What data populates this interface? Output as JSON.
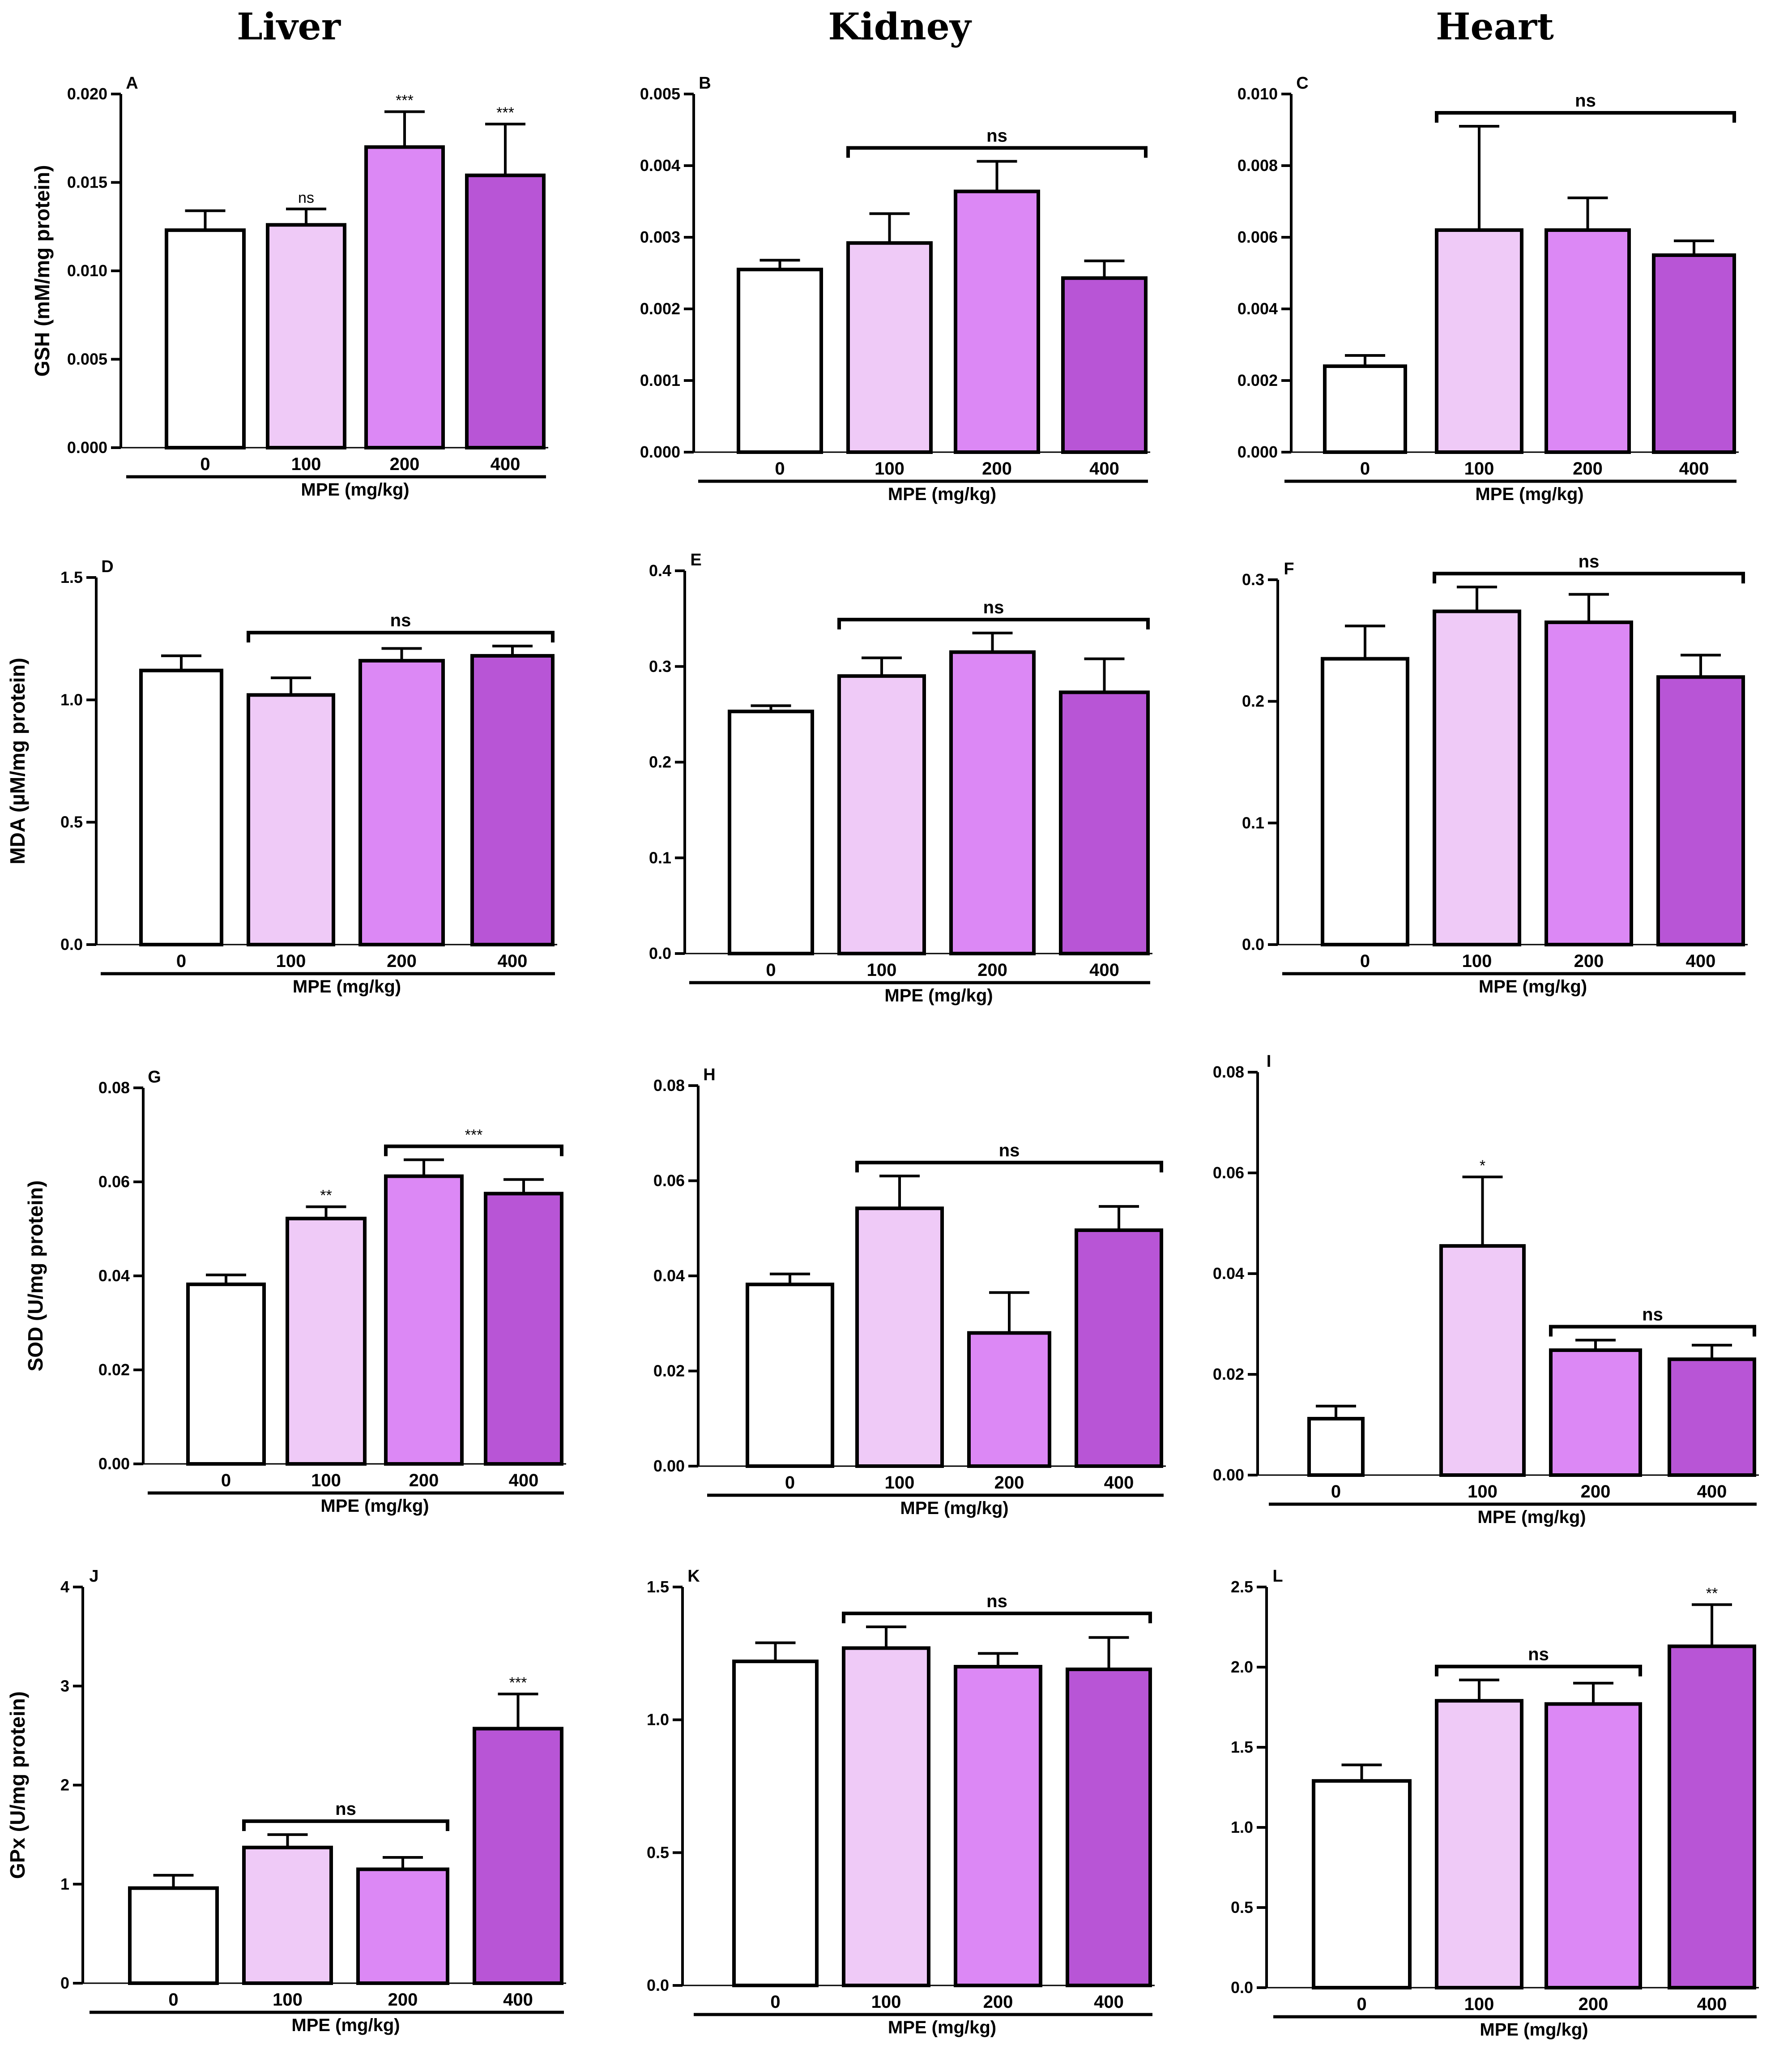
{
  "columns": [
    "Liver",
    "Kidney",
    "Heart"
  ],
  "colors": {
    "c0": "#ffffff",
    "c100": "#efcaf7",
    "c200": "#dc88f5",
    "c400": "#b855d6",
    "stroke": "#000000"
  },
  "chart_data": [
    {
      "panel": "A",
      "type": "bar",
      "organ": "Liver",
      "ylabel": "GSH (mM/mg protein)",
      "xlabel": "MPE (mg/kg)",
      "categories": [
        "0",
        "100",
        "200",
        "400"
      ],
      "values": [
        0.0123,
        0.0126,
        0.017,
        0.0154
      ],
      "errors": [
        0.0011,
        0.0009,
        0.002,
        0.0029
      ],
      "ylim": [
        0,
        0.02
      ],
      "ticks": [
        0,
        0.005,
        0.01,
        0.015,
        0.02
      ],
      "tick_labels": [
        "0.000",
        "0.005",
        "0.010",
        "0.015",
        "0.020"
      ],
      "annotations": [
        {
          "text": "ns",
          "bar": 1
        },
        {
          "text": "***",
          "bar": 2
        },
        {
          "text": "***",
          "bar": 3
        }
      ]
    },
    {
      "panel": "B",
      "type": "bar",
      "organ": "Kidney",
      "ylabel": "",
      "xlabel": "MPE (mg/kg)",
      "categories": [
        "0",
        "100",
        "200",
        "400"
      ],
      "values": [
        0.00255,
        0.00292,
        0.00364,
        0.00243
      ],
      "errors": [
        0.00013,
        0.00041,
        0.00042,
        0.00024
      ],
      "ylim": [
        0,
        0.005
      ],
      "ticks": [
        0,
        0.001,
        0.002,
        0.003,
        0.004,
        0.005
      ],
      "tick_labels": [
        "0.000",
        "0.001",
        "0.002",
        "0.003",
        "0.004",
        "0.005"
      ],
      "annotations": [
        {
          "text": "ns",
          "bracket": [
            1,
            3
          ]
        }
      ]
    },
    {
      "panel": "C",
      "type": "bar",
      "organ": "Heart",
      "ylabel": "",
      "xlabel": "MPE (mg/kg)",
      "categories": [
        "0",
        "100",
        "200",
        "400"
      ],
      "values": [
        0.0024,
        0.0062,
        0.0062,
        0.0055
      ],
      "errors": [
        0.0003,
        0.0029,
        0.0009,
        0.0004
      ],
      "ylim": [
        0,
        0.01
      ],
      "ticks": [
        0,
        0.002,
        0.004,
        0.006,
        0.008,
        0.01
      ],
      "tick_labels": [
        "0.000",
        "0.002",
        "0.004",
        "0.006",
        "0.008",
        "0.010"
      ],
      "annotations": [
        {
          "text": "ns",
          "bracket": [
            1,
            3
          ]
        }
      ]
    },
    {
      "panel": "D",
      "type": "bar",
      "organ": "Liver",
      "ylabel": "MDA (µM/mg protein)",
      "xlabel": "MPE (mg/kg)",
      "categories": [
        "0",
        "100",
        "200",
        "400"
      ],
      "values": [
        1.12,
        1.02,
        1.16,
        1.18
      ],
      "errors": [
        0.06,
        0.07,
        0.05,
        0.04
      ],
      "ylim": [
        0,
        1.5
      ],
      "ticks": [
        0,
        0.5,
        1.0,
        1.5
      ],
      "tick_labels": [
        "0.0",
        "0.5",
        "1.0",
        "1.5"
      ],
      "annotations": [
        {
          "text": "ns",
          "bracket": [
            1,
            3
          ]
        }
      ]
    },
    {
      "panel": "E",
      "type": "bar",
      "organ": "Kidney",
      "ylabel": "",
      "xlabel": "MPE (mg/kg)",
      "categories": [
        "0",
        "100",
        "200",
        "400"
      ],
      "values": [
        0.253,
        0.29,
        0.315,
        0.273
      ],
      "errors": [
        0.006,
        0.019,
        0.02,
        0.035
      ],
      "ylim": [
        0,
        0.4
      ],
      "ticks": [
        0,
        0.1,
        0.2,
        0.3,
        0.4
      ],
      "tick_labels": [
        "0.0",
        "0.1",
        "0.2",
        "0.3",
        "0.4"
      ],
      "annotations": [
        {
          "text": "ns",
          "bracket": [
            1,
            3
          ]
        }
      ]
    },
    {
      "panel": "F",
      "type": "bar",
      "organ": "Heart",
      "ylabel": "",
      "xlabel": "MPE (mg/kg)",
      "categories": [
        "0",
        "100",
        "200",
        "400"
      ],
      "values": [
        0.235,
        0.274,
        0.265,
        0.22
      ],
      "errors": [
        0.027,
        0.02,
        0.023,
        0.018
      ],
      "ylim": [
        0,
        0.3
      ],
      "ticks": [
        0,
        0.1,
        0.2,
        0.3
      ],
      "tick_labels": [
        "0.0",
        "0.1",
        "0.2",
        "0.3"
      ],
      "annotations": [
        {
          "text": "ns",
          "bracket": [
            1,
            3
          ]
        }
      ]
    },
    {
      "panel": "G",
      "type": "bar",
      "organ": "Liver",
      "ylabel": "SOD (U/mg protein)",
      "xlabel": "MPE (mg/kg)",
      "categories": [
        "0",
        "100",
        "200",
        "400"
      ],
      "values": [
        0.0382,
        0.0522,
        0.0612,
        0.0575
      ],
      "errors": [
        0.002,
        0.0025,
        0.0035,
        0.003
      ],
      "ylim": [
        0,
        0.08
      ],
      "ticks": [
        0,
        0.02,
        0.04,
        0.06,
        0.08
      ],
      "tick_labels": [
        "0.00",
        "0.02",
        "0.04",
        "0.06",
        "0.08"
      ],
      "annotations": [
        {
          "text": "**",
          "bar": 1
        },
        {
          "text": "***",
          "bracket": [
            2,
            3
          ]
        }
      ]
    },
    {
      "panel": "H",
      "type": "bar",
      "organ": "Kidney",
      "ylabel": "",
      "xlabel": "MPE (mg/kg)",
      "categories": [
        "0",
        "100",
        "200",
        "400"
      ],
      "values": [
        0.0382,
        0.0542,
        0.028,
        0.0496
      ],
      "errors": [
        0.0022,
        0.0068,
        0.0085,
        0.005
      ],
      "ylim": [
        0,
        0.08
      ],
      "ticks": [
        0,
        0.02,
        0.04,
        0.06,
        0.08
      ],
      "tick_labels": [
        "0.00",
        "0.02",
        "0.04",
        "0.06",
        "0.08"
      ],
      "annotations": [
        {
          "text": "ns",
          "bracket": [
            1,
            3
          ]
        }
      ]
    },
    {
      "panel": "I",
      "type": "bar",
      "organ": "Heart",
      "ylabel": "",
      "xlabel": "MPE (mg/kg)",
      "categories": [
        "0",
        "100",
        "200",
        "400"
      ],
      "values": [
        0.0112,
        0.0455,
        0.0248,
        0.023
      ],
      "errors": [
        0.0025,
        0.0137,
        0.002,
        0.0028
      ],
      "ylim": [
        0,
        0.08
      ],
      "ticks": [
        0,
        0.02,
        0.04,
        0.06,
        0.08
      ],
      "tick_labels": [
        "0.00",
        "0.02",
        "0.04",
        "0.06",
        "0.08"
      ],
      "annotations": [
        {
          "text": "*",
          "bar": 1
        },
        {
          "text": "ns",
          "bracket": [
            2,
            3
          ]
        }
      ]
    },
    {
      "panel": "J",
      "type": "bar",
      "organ": "Liver",
      "ylabel": "GPx (U/mg protein)",
      "xlabel": "MPE (mg/kg)",
      "categories": [
        "0",
        "100",
        "200",
        "400"
      ],
      "values": [
        0.96,
        1.37,
        1.15,
        2.57
      ],
      "errors": [
        0.13,
        0.13,
        0.12,
        0.35
      ],
      "ylim": [
        0,
        4
      ],
      "ticks": [
        0,
        1,
        2,
        3,
        4
      ],
      "tick_labels": [
        "0",
        "1",
        "2",
        "3",
        "4"
      ],
      "annotations": [
        {
          "text": "ns",
          "bracket": [
            1,
            2
          ]
        },
        {
          "text": "***",
          "bar": 3
        }
      ]
    },
    {
      "panel": "K",
      "type": "bar",
      "organ": "Kidney",
      "ylabel": "",
      "xlabel": "MPE (mg/kg)",
      "categories": [
        "0",
        "100",
        "200",
        "400"
      ],
      "values": [
        1.22,
        1.27,
        1.2,
        1.19
      ],
      "errors": [
        0.07,
        0.08,
        0.05,
        0.12
      ],
      "ylim": [
        0,
        1.5
      ],
      "ticks": [
        0,
        0.5,
        1.0,
        1.5
      ],
      "tick_labels": [
        "0.0",
        "0.5",
        "1.0",
        "1.5"
      ],
      "annotations": [
        {
          "text": "ns",
          "bracket": [
            1,
            3
          ]
        }
      ]
    },
    {
      "panel": "L",
      "type": "bar",
      "organ": "Heart",
      "ylabel": "",
      "xlabel": "MPE (mg/kg)",
      "categories": [
        "0",
        "100",
        "200",
        "400"
      ],
      "values": [
        1.29,
        1.79,
        1.77,
        2.13
      ],
      "errors": [
        0.1,
        0.13,
        0.13,
        0.26
      ],
      "ylim": [
        0,
        2.5
      ],
      "ticks": [
        0,
        0.5,
        1.0,
        1.5,
        2.0,
        2.5
      ],
      "tick_labels": [
        "0.0",
        "0.5",
        "1.0",
        "1.5",
        "2.0",
        "2.5"
      ],
      "annotations": [
        {
          "text": "ns",
          "bracket": [
            1,
            2
          ]
        },
        {
          "text": "**",
          "bar": 3
        }
      ]
    }
  ]
}
